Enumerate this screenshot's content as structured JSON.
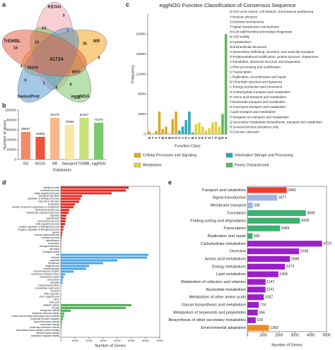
{
  "chart_data": [
    {
      "type": "venn",
      "panel": "a",
      "sets": [
        {
          "name": "KEGG",
          "color": "#f2a7b0"
        },
        {
          "name": "NR",
          "color": "#f5a623"
        },
        {
          "name": "eggNOG",
          "color": "#7cc96b"
        },
        {
          "name": "SwissProt",
          "color": "#5b9bd5"
        },
        {
          "name": "TrEMBL",
          "color": "#e8644a"
        }
      ],
      "region_counts": [
        3,
        16,
        8,
        2,
        0,
        41724,
        29208,
        8097,
        19,
        14,
        7,
        35,
        9,
        1,
        4,
        6
      ]
    },
    {
      "type": "bar",
      "panel": "b",
      "ylabel": "Number of genes",
      "xlabel": "Databases",
      "categories": [
        "GO",
        "KEGG",
        "NR",
        "Swissprot",
        "TrEMBL",
        "eggNOG"
      ],
      "values": [
        55657,
        45886,
        84470,
        70069,
        84467,
        74470
      ],
      "colors": [
        "#f28b66",
        "#e8553a",
        "#f7b98a",
        "#fbe6a2",
        "#c7e07a",
        "#7bc96f"
      ],
      "ylim": [
        0,
        100000
      ],
      "yticks": [
        0,
        20000,
        40000,
        60000,
        80000,
        100000
      ]
    },
    {
      "type": "bar",
      "panel": "c",
      "title": "eggNOG Function Classification of Consensus Sequence",
      "ylabel": "Frequency",
      "xlabel": "Function Class",
      "categories": [
        "D",
        "Y",
        "V",
        "T",
        "M",
        "Z",
        "W",
        "U",
        "O",
        "A",
        "J",
        "K",
        "L",
        "B",
        "C",
        "G",
        "E",
        "F",
        "H",
        "I",
        "P",
        "Q",
        "R",
        "S"
      ],
      "series": [
        {
          "name": "Cellular Processes and Signaling",
          "color": "#e0a91c",
          "values": [
            500,
            100,
            600,
            4500,
            1000,
            1500,
            100,
            3000,
            4500,
            null,
            null,
            null,
            null,
            null,
            null,
            null,
            null,
            null,
            null,
            null,
            null,
            null,
            null,
            null
          ]
        },
        {
          "name": "Information Storage and Processing",
          "color": "#2fa7b8",
          "values": [
            null,
            null,
            null,
            null,
            null,
            null,
            null,
            null,
            null,
            700,
            1500,
            2800,
            4500,
            300,
            null,
            null,
            null,
            null,
            null,
            null,
            null,
            null,
            null,
            null
          ]
        },
        {
          "name": "Metabolism",
          "color": "#e3cf3a",
          "values": [
            null,
            null,
            null,
            null,
            null,
            null,
            null,
            null,
            null,
            null,
            null,
            null,
            null,
            null,
            2000,
            2300,
            1500,
            700,
            1200,
            2300,
            2500,
            1500,
            null,
            null
          ]
        },
        {
          "name": "Poorly Characterized",
          "color": "#5cb85c",
          "values": [
            null,
            null,
            null,
            null,
            null,
            null,
            null,
            null,
            null,
            null,
            null,
            null,
            null,
            null,
            null,
            null,
            null,
            null,
            null,
            null,
            null,
            null,
            4000,
            20000
          ]
        }
      ],
      "ylim": [
        0,
        24000
      ],
      "yticks": [
        0,
        4000,
        8000,
        12000,
        16000,
        20000
      ],
      "class_descriptions": [
        "D:Cell cycle control, cell division, chromosome partitioning",
        "Y:Nuclear structure",
        "V:Defense mechanisms",
        "T:Signal transduction mechanisms",
        "M:Cell wall/membrane/envelope biogenesis",
        "N:Cell motility",
        "Z:Cytoskeleton",
        "W:Extracellular structures",
        "U:Intracellular trafficking, secretion, and vesicular transport",
        "O:Posttranslational modification, protein turnover, chaperones",
        "J:Translation, ribosomal structure and biogenesis",
        "A:RNA processing and modification",
        "K:Transcription",
        "L:Replication, recombination and repair",
        "B:Chromatin structure and dynamics",
        "C:Energy production and conversion",
        "G:Carbohydrate transport and metabolism",
        "E:Amino acid transport and metabolism",
        "F:Nucleotide transport and metabolism",
        "H:Coenzyme transport and metabolism",
        "I:Lipid transport and metabolism",
        "P:Inorganic ion transport and metabolism",
        "Q:Secondary metabolites biosynthesis, transport and catabolism",
        "R:General function prediction only",
        "S:Function unknown"
      ]
    },
    {
      "type": "hbar",
      "panel": "d",
      "xlabel": "Number of Genes",
      "categories": [
        "cellular process",
        "metabolic process",
        "single-organism process",
        "biological regulation",
        "regulation of biological process",
        "response to stimulus",
        "localization",
        "cellular component organization or biogenesis",
        "developmental process",
        "multicellular organismal process",
        "signaling",
        "reproduction",
        "reproductive process",
        "multi-organism process",
        "positive regulation of biological process",
        "negative regulation of biological process",
        "growth",
        "immune system process",
        "rhythmic process",
        "detoxification",
        "locomotion",
        "biological adhesion",
        "cell killing",
        "biological phase",
        "cell",
        "cell part",
        "organelle",
        "membrane",
        "organelle part",
        "membrane part",
        "macromolecular complex",
        "membrane-enclosed lumen",
        "extracellular region",
        "cell junction",
        "symplast",
        "supramolecular fiber",
        "extracellular region part",
        "nucleoid",
        "other organism",
        "other organism part",
        "virion",
        "virion part",
        "catalytic activity",
        "binding",
        "transporter activity",
        "structural molecule activity",
        "nucleic acid binding transcription factor activity",
        "molecular function regulator",
        "signal transducer activity",
        "antioxidant activity",
        "molecular transducer activity",
        "transcription factor activity, protein binding",
        "electron carrier activity",
        "translation regulator activity"
      ],
      "values": [
        48000,
        46000,
        36000,
        15000,
        14000,
        13000,
        10000,
        9000,
        6000,
        5500,
        4000,
        3500,
        3400,
        3000,
        2000,
        1800,
        1200,
        1000,
        500,
        400,
        300,
        250,
        80,
        50,
        62000,
        61000,
        40000,
        30000,
        20000,
        18000,
        9000,
        3000,
        2000,
        1500,
        1400,
        300,
        200,
        100,
        80,
        60,
        30,
        30,
        50000,
        46000,
        7000,
        2500,
        2200,
        1500,
        900,
        600,
        500,
        300,
        200,
        100
      ],
      "colors": [
        "#e8281f",
        "#e8281f",
        "#e8281f",
        "#e8281f",
        "#e8281f",
        "#e8281f",
        "#e8281f",
        "#e8281f",
        "#e8281f",
        "#e8281f",
        "#e8281f",
        "#e8281f",
        "#e8281f",
        "#e8281f",
        "#e8281f",
        "#e8281f",
        "#e8281f",
        "#e8281f",
        "#e8281f",
        "#e8281f",
        "#e8281f",
        "#e8281f",
        "#e8281f",
        "#e8281f",
        "#4da6e8",
        "#4da6e8",
        "#4da6e8",
        "#4da6e8",
        "#4da6e8",
        "#4da6e8",
        "#4da6e8",
        "#4da6e8",
        "#4da6e8",
        "#4da6e8",
        "#4da6e8",
        "#4da6e8",
        "#4da6e8",
        "#4da6e8",
        "#4da6e8",
        "#4da6e8",
        "#4da6e8",
        "#4da6e8",
        "#4caf50",
        "#4caf50",
        "#4caf50",
        "#4caf50",
        "#4caf50",
        "#4caf50",
        "#4caf50",
        "#4caf50",
        "#4caf50",
        "#4caf50",
        "#4caf50",
        "#4caf50"
      ],
      "xlim": [
        0,
        70000
      ],
      "xticks": [
        0,
        10000,
        20000,
        30000,
        40000,
        50000,
        60000,
        70000
      ]
    },
    {
      "type": "hbar",
      "panel": "e",
      "xlabel": "Number of Genes",
      "categories": [
        "Transport and catabolism",
        "Signal transduction",
        "Membrane transport",
        "Translation",
        "Folding,sorting and degradation",
        "Transcription",
        "Replication and repair",
        "Carbohydrate metabolism",
        "Overview",
        "Amino acid metabolism",
        "Energy metabolism",
        "Lipid metabolism",
        "Metabolism of cofactors and vitamins",
        "Nucleotide metabolism",
        "Metabolism of other amino acids",
        "Glycan biosynthesis and metabolism",
        "Metabolism of terpenoids and polyketides",
        "Biosynthesis of other secondary metabolites",
        "Environmental adaptation"
      ],
      "values": [
        2483,
        1877,
        335,
        3695,
        3325,
        2069,
        330,
        4719,
        3269,
        2688,
        2373,
        1958,
        1147,
        1141,
        1037,
        724,
        656,
        529,
        1363
      ],
      "colors": [
        "#f03a2e",
        "#9db4e6",
        "#9db4e6",
        "#3cb371",
        "#3cb371",
        "#3cb371",
        "#3cb371",
        "#9b1fc8",
        "#9b1fc8",
        "#9b1fc8",
        "#9b1fc8",
        "#9b1fc8",
        "#9b1fc8",
        "#9b1fc8",
        "#9b1fc8",
        "#9b1fc8",
        "#9b1fc8",
        "#9b1fc8",
        "#f08a24"
      ],
      "value_labels": true,
      "xlim": [
        0,
        5000
      ],
      "xticks": [
        0,
        1000,
        2000,
        3000,
        4000,
        5000
      ]
    }
  ]
}
